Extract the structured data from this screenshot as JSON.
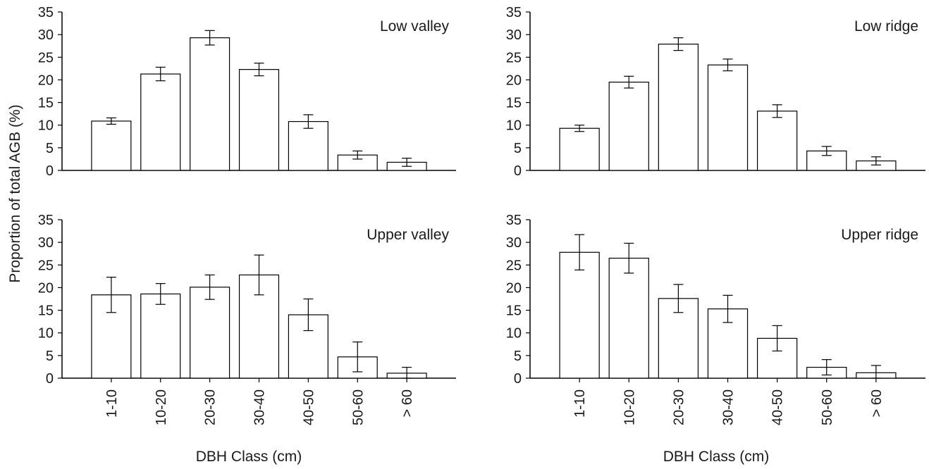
{
  "figure": {
    "ylabel": "Proportion of total AGB (%)",
    "xlabel": "DBH Class (cm)"
  },
  "chart_data": [
    {
      "type": "bar",
      "title": "Low valley",
      "categories": [
        "1-10",
        "10-20",
        "20-30",
        "30-40",
        "40-50",
        "50-60",
        "> 60"
      ],
      "values": [
        10.9,
        21.3,
        29.3,
        22.3,
        10.8,
        3.4,
        1.8
      ],
      "errors": [
        0.7,
        1.5,
        1.6,
        1.4,
        1.5,
        0.9,
        0.9
      ],
      "ylim": [
        0,
        35
      ],
      "yticks": [
        0,
        5,
        10,
        15,
        20,
        25,
        30,
        35
      ]
    },
    {
      "type": "bar",
      "title": "Low ridge",
      "categories": [
        "1-10",
        "10-20",
        "20-30",
        "30-40",
        "40-50",
        "50-60",
        "> 60"
      ],
      "values": [
        9.3,
        19.5,
        27.9,
        23.3,
        13.1,
        4.3,
        2.1
      ],
      "errors": [
        0.7,
        1.3,
        1.4,
        1.3,
        1.4,
        1.0,
        0.9
      ],
      "ylim": [
        0,
        35
      ],
      "yticks": [
        0,
        5,
        10,
        15,
        20,
        25,
        30,
        35
      ]
    },
    {
      "type": "bar",
      "title": "Upper valley",
      "categories": [
        "1-10",
        "10-20",
        "20-30",
        "30-40",
        "40-50",
        "50-60",
        "> 60"
      ],
      "values": [
        18.4,
        18.6,
        20.1,
        22.8,
        14.0,
        4.7,
        1.1
      ],
      "errors": [
        3.9,
        2.3,
        2.7,
        4.4,
        3.5,
        3.3,
        1.3
      ],
      "ylim": [
        0,
        35
      ],
      "yticks": [
        0,
        5,
        10,
        15,
        20,
        25,
        30,
        35
      ]
    },
    {
      "type": "bar",
      "title": "Upper ridge",
      "categories": [
        "1-10",
        "10-20",
        "20-30",
        "30-40",
        "40-50",
        "50-60",
        "> 60"
      ],
      "values": [
        27.8,
        26.5,
        17.6,
        15.3,
        8.8,
        2.4,
        1.2
      ],
      "errors": [
        3.9,
        3.3,
        3.1,
        3.0,
        2.8,
        1.7,
        1.6
      ],
      "ylim": [
        0,
        35
      ],
      "yticks": [
        0,
        5,
        10,
        15,
        20,
        25,
        30,
        35
      ]
    }
  ]
}
